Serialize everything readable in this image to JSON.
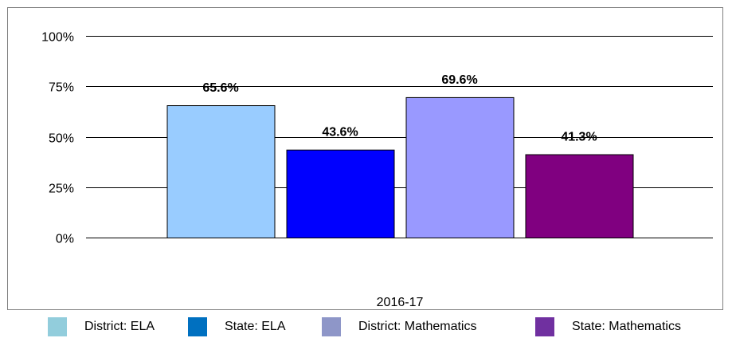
{
  "chart_data": {
    "type": "bar",
    "title": "",
    "xlabel": "",
    "ylabel": "",
    "categories": [
      "2016-17"
    ],
    "series": [
      {
        "name": "District: ELA",
        "values": [
          65.6
        ],
        "label": "65.6%",
        "color": "#99ccff",
        "legend_color": "#92cddc"
      },
      {
        "name": "State: ELA",
        "values": [
          43.6
        ],
        "label": "43.6%",
        "color": "#0000ff",
        "legend_color": "#0070c0"
      },
      {
        "name": "District: Mathematics",
        "values": [
          69.6
        ],
        "label": "69.6%",
        "color": "#9999ff",
        "legend_color": "#8e96c8"
      },
      {
        "name": "State: Mathematics",
        "values": [
          41.3
        ],
        "label": "41.3%",
        "color": "#800080",
        "legend_color": "#7030a0"
      }
    ],
    "ylim": [
      0,
      100
    ],
    "y_ticks": [
      0,
      25,
      50,
      75,
      100
    ],
    "y_tick_labels": [
      "0%",
      "25%",
      "50%",
      "75%",
      "100%"
    ],
    "grid": true,
    "legend_position": "bottom"
  }
}
